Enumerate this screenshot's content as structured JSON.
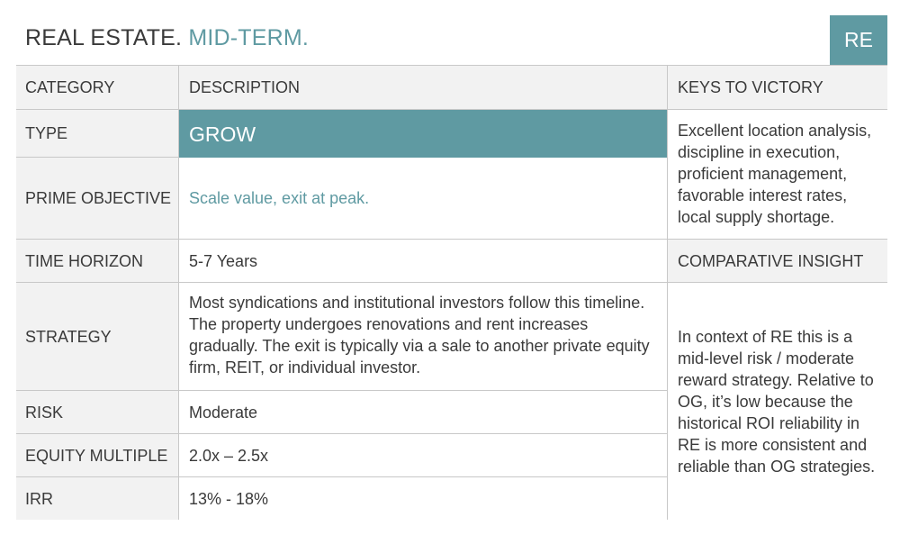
{
  "header": {
    "title_main": "REAL ESTATE.",
    "title_accent": "MID-TERM.",
    "badge": "RE"
  },
  "table": {
    "headers": {
      "category": "CATEGORY",
      "description": "DESCRIPTION",
      "keys": "KEYS TO VICTORY"
    },
    "rows": [
      {
        "category": "TYPE",
        "description": "GROW"
      },
      {
        "category": "PRIME OBJECTIVE",
        "description": "Scale value, exit at peak."
      },
      {
        "category": "TIME HORIZON",
        "description": "5-7 Years"
      },
      {
        "category": "STRATEGY",
        "description": "Most syndications and institutional investors follow this timeline. The property undergoes renovations and rent increases gradually. The exit is typically via a sale to another private equity firm, REIT, or individual investor."
      },
      {
        "category": "RISK",
        "description": "Moderate"
      },
      {
        "category": "EQUITY MULTIPLE",
        "description": "2.0x – 2.5x"
      },
      {
        "category": "IRR",
        "description": "13% - 18%"
      }
    ],
    "keys_text": "Excellent location analysis, discipline in execution, proficient management, favorable interest rates, local supply shortage.",
    "comparative_header": "COMPARATIVE INSIGHT",
    "comparative_text": "In context of RE this is a mid-level risk /  moderate reward strategy. Relative to OG, it’s low because the historical ROI reliability in RE is more consistent and reliable than OG strategies."
  },
  "colors": {
    "accent": "#5f9aa2",
    "header_bg": "#f2f2f2",
    "text": "#3a3a3a"
  }
}
